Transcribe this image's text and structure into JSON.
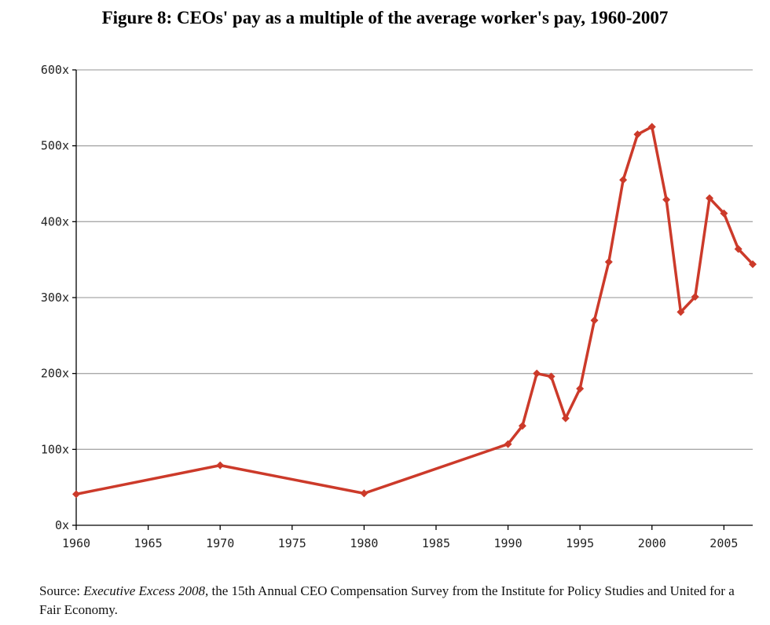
{
  "chart_data": {
    "type": "line",
    "title": "Figure 8: CEOs' pay as a multiple of the average worker's pay, 1960-2007",
    "xlabel": "",
    "ylabel": "",
    "xlim": [
      1960,
      2007
    ],
    "ylim": [
      0,
      600
    ],
    "x_ticks": [
      1960,
      1965,
      1970,
      1975,
      1980,
      1985,
      1990,
      1995,
      2000,
      2005
    ],
    "y_ticks": [
      0,
      100,
      200,
      300,
      400,
      500,
      600
    ],
    "y_tick_labels": [
      "0x",
      "100x",
      "200x",
      "300x",
      "400x",
      "500x",
      "600x"
    ],
    "grid": "horizontal",
    "series": [
      {
        "color": "#cc3a2a",
        "x": [
          1960,
          1970,
          1980,
          1990,
          1991,
          1992,
          1993,
          1994,
          1995,
          1996,
          1997,
          1998,
          1999,
          2000,
          2001,
          2002,
          2003,
          2004,
          2005,
          2006,
          2007
        ],
        "y": [
          41,
          79,
          42,
          107,
          131,
          200,
          196,
          141,
          180,
          270,
          347,
          455,
          515,
          525,
          429,
          281,
          301,
          431,
          411,
          364,
          344
        ]
      }
    ]
  },
  "source": {
    "prefix": "Source: ",
    "italic": "Executive Excess 2008",
    "rest": ", the 15th Annual CEO Compensation Survey from the Institute for Policy Studies and United for a Fair Economy."
  }
}
